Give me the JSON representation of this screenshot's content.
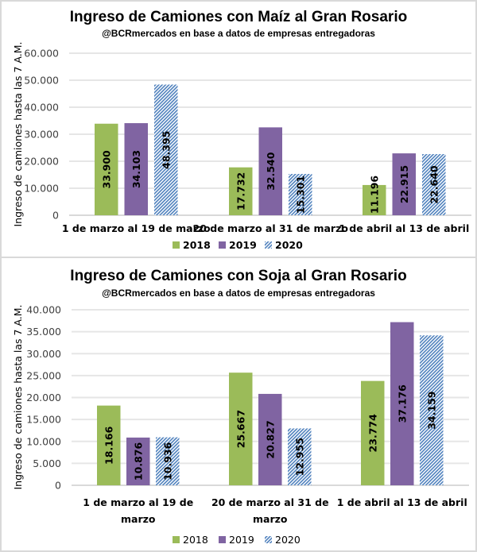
{
  "colors": {
    "2018": "#9bbb59",
    "2019": "#8064a2",
    "2020_fg": "#4f81bd",
    "2020_bg": "#ffffff",
    "grid": "#e6e6e6"
  },
  "chart_data": [
    {
      "type": "bar",
      "title": "Ingreso de Camiones con Maíz al Gran Rosario",
      "subtitle": "@BCRmercados  en base a datos de empresas entregadoras",
      "xlabel": "",
      "ylabel": "Ingreso de camiones hasta las 7 A.M.",
      "ylim": [
        0,
        60000
      ],
      "yticks": [
        0,
        10000,
        20000,
        30000,
        40000,
        50000,
        60000
      ],
      "ytick_labels": [
        "0",
        "10.000",
        "20.000",
        "30.000",
        "40.000",
        "50.000",
        "60.000"
      ],
      "categories": [
        [
          "1 de marzo al 19 de marzo"
        ],
        [
          "20 de marzo al 31 de marzo"
        ],
        [
          "1 de abril al 13 de abril"
        ]
      ],
      "series": [
        {
          "name": "2018",
          "values": [
            33900,
            17732,
            11196
          ],
          "labels": [
            "33.900",
            "17.732",
            "11.196"
          ],
          "pattern": "solid"
        },
        {
          "name": "2019",
          "values": [
            34103,
            32540,
            22915
          ],
          "labels": [
            "34.103",
            "32.540",
            "22.915"
          ],
          "pattern": "solid"
        },
        {
          "name": "2020",
          "values": [
            48395,
            15301,
            22640
          ],
          "labels": [
            "48.395",
            "15.301",
            "22.640"
          ],
          "pattern": "hatched"
        }
      ],
      "grid": true,
      "legend": "bottom-center",
      "legend_bold": true
    },
    {
      "type": "bar",
      "title": "Ingreso de Camiones con Soja al Gran Rosario",
      "subtitle": "@BCRmercados  en base a datos de empresas entregadoras",
      "xlabel": "",
      "ylabel": "Ingreso de camiones hasta las 7 A.M.",
      "ylim": [
        0,
        40000
      ],
      "yticks": [
        0,
        5000,
        10000,
        15000,
        20000,
        25000,
        30000,
        35000,
        40000
      ],
      "ytick_labels": [
        "0",
        "5.000",
        "10.000",
        "15.000",
        "20.000",
        "25.000",
        "30.000",
        "35.000",
        "40.000"
      ],
      "categories": [
        [
          "1 de marzo al 19 de",
          "marzo"
        ],
        [
          "20 de marzo al 31 de",
          "marzo"
        ],
        [
          "1 de abril al 13 de abril"
        ]
      ],
      "series": [
        {
          "name": "2018",
          "values": [
            18166,
            25667,
            23774
          ],
          "labels": [
            "18.166",
            "25.667",
            "23.774"
          ],
          "pattern": "solid"
        },
        {
          "name": "2019",
          "values": [
            10876,
            20827,
            37176
          ],
          "labels": [
            "10.876",
            "20.827",
            "37.176"
          ],
          "pattern": "solid"
        },
        {
          "name": "2020",
          "values": [
            10936,
            12955,
            34159
          ],
          "labels": [
            "10.936",
            "12.955",
            "34.159"
          ],
          "pattern": "hatched"
        }
      ],
      "grid": true,
      "legend": "bottom-center",
      "legend_bold": false
    }
  ]
}
